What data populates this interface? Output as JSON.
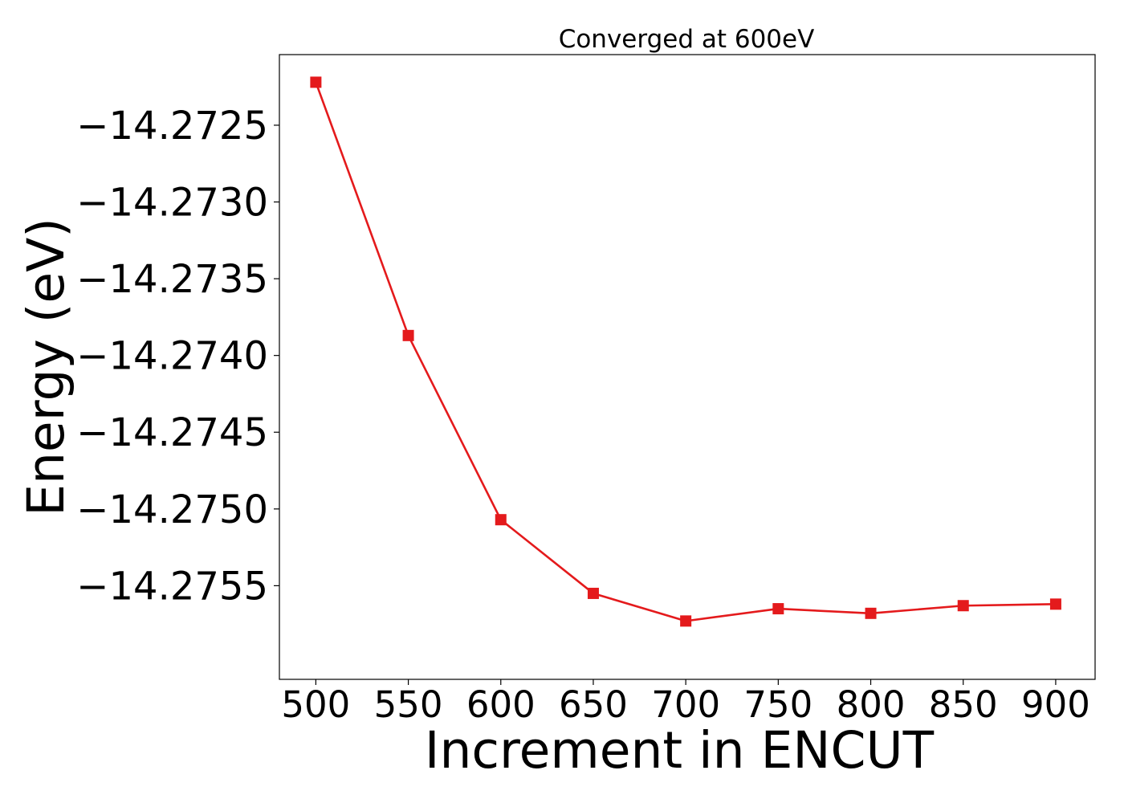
{
  "chart_data": {
    "type": "line",
    "title": "Converged at 600eV",
    "xlabel": "Increment in ENCUT",
    "ylabel": "Energy (eV)",
    "x": [
      500,
      550,
      600,
      650,
      700,
      750,
      800,
      850,
      900
    ],
    "series": [
      {
        "values": [
          -14.27222,
          -14.27387,
          -14.27507,
          -14.27555,
          -14.27573,
          -14.27565,
          -14.27568,
          -14.27563,
          -14.27562
        ],
        "color": "#e41a1c",
        "marker": "square"
      }
    ],
    "xticks": [
      500,
      550,
      600,
      650,
      700,
      750,
      800,
      850,
      900
    ],
    "xtick_labels": [
      "500",
      "550",
      "600",
      "650",
      "700",
      "750",
      "800",
      "850",
      "900"
    ],
    "yticks": [
      -14.2725,
      -14.273,
      -14.2735,
      -14.274,
      -14.2745,
      -14.275,
      -14.2755
    ],
    "ytick_labels": [
      "−14.2725",
      "−14.2730",
      "−14.2735",
      "−14.2740",
      "−14.2745",
      "−14.2750",
      "−14.2755"
    ],
    "xlim": [
      480.3,
      921.3
    ],
    "ylim": [
      -14.27611,
      -14.27204
    ],
    "grid": false,
    "legend": false
  }
}
